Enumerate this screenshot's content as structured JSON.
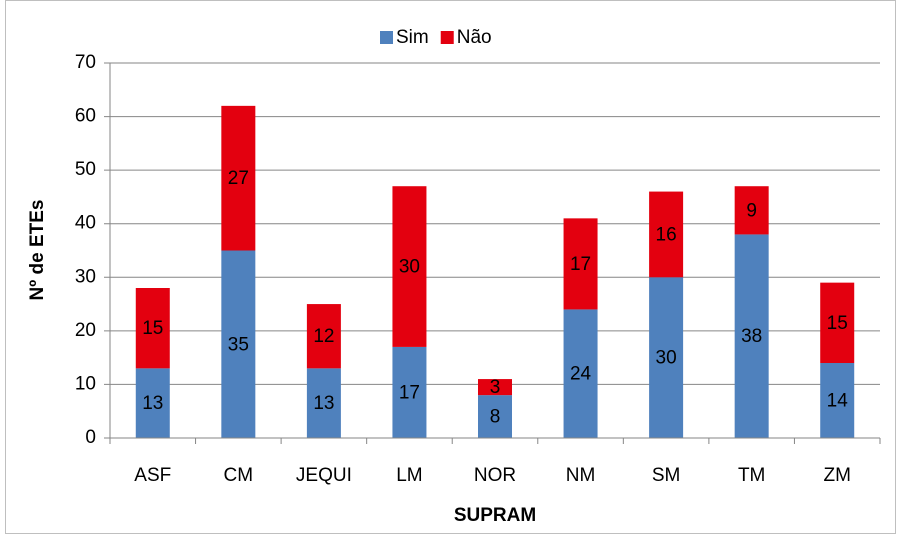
{
  "chart_data": {
    "type": "stacked_bar",
    "categories": [
      "ASF",
      "CM",
      "JEQUI",
      "LM",
      "NOR",
      "NM",
      "SM",
      "TM",
      "ZM"
    ],
    "series": [
      {
        "name": "Sim",
        "color": "#4f81bd",
        "values": [
          13,
          35,
          13,
          17,
          8,
          24,
          30,
          38,
          14
        ]
      },
      {
        "name": "Não",
        "color": "#e3000f",
        "values": [
          15,
          27,
          12,
          30,
          3,
          17,
          16,
          9,
          15
        ]
      }
    ],
    "xlabel": "SUPRAM",
    "ylabel": "Nº de ETEs",
    "ylim": [
      0,
      70
    ],
    "yticks": [
      0,
      10,
      20,
      30,
      40,
      50,
      60,
      70
    ],
    "grid": true,
    "legend": "top"
  }
}
